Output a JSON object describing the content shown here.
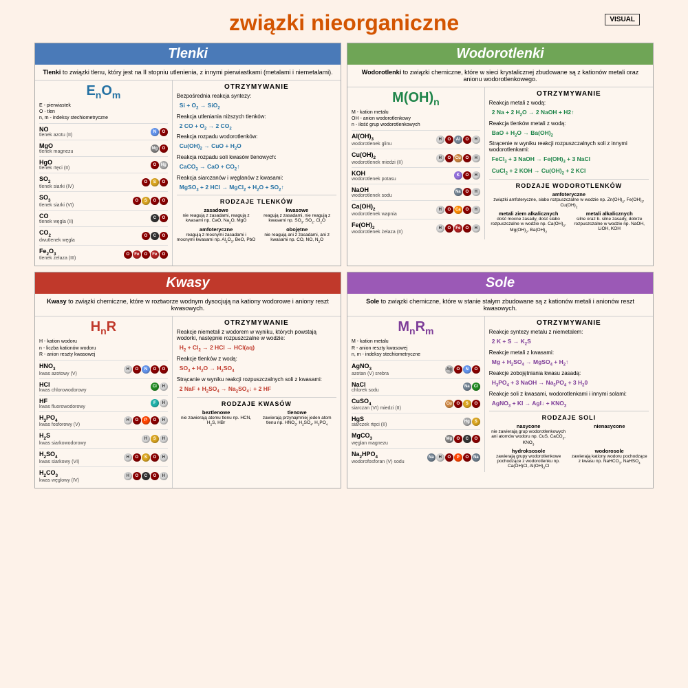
{
  "title": "związki nieorganiczne",
  "logo": "VISUAL",
  "colors": {
    "tlenki": "#4a7ab8",
    "wodorotlenki": "#6fa556",
    "kwasy": "#c0392b",
    "sole": "#9b59b6",
    "blue": "#2471a3",
    "green": "#1e8449",
    "red": "#c0392b",
    "purple": "#7d3c98"
  },
  "atoms": {
    "N": "#6495ed",
    "O": "#8b0000",
    "Mg": "#808080",
    "Hg": "#a9a9a9",
    "S": "#daa520",
    "C": "#333333",
    "Fe": "#b22222",
    "H": "#d3d3d3",
    "Al": "#778899",
    "Cu": "#cd853f",
    "K": "#9370db",
    "Na": "#708090",
    "Ca": "#ff8c00",
    "Cl": "#228b22",
    "F": "#20b2aa",
    "P": "#ff4500",
    "Ag": "#c0c0c0"
  },
  "sections": {
    "tlenki": {
      "title": "Tlenki",
      "def": "Tlenki to związki tlenu, który jest na II stopniu utlenienia, z innymi pierwiastkami (metalami i niemetalami).",
      "formula": "E<sub>n</sub>O<sub>m</sub>",
      "legend": [
        "E - pierwiastek",
        "O - tlen",
        "n, m - indeksy stechiometryczne"
      ],
      "compounds": [
        {
          "f": "NO",
          "n": "tlenek azotu (II)",
          "a": [
            "N",
            "O"
          ]
        },
        {
          "f": "MgO",
          "n": "tlenek magnezu",
          "a": [
            "Mg",
            "O"
          ]
        },
        {
          "f": "HgO",
          "n": "tlenek rtęci (II)",
          "a": [
            "O",
            "Hg"
          ]
        },
        {
          "f": "SO<sub>2</sub>",
          "n": "tlenek siarki (IV)",
          "a": [
            "O",
            "S",
            "O"
          ]
        },
        {
          "f": "SO<sub>3</sub>",
          "n": "tlenek siarki (VI)",
          "a": [
            "O",
            "S",
            "O",
            "O"
          ]
        },
        {
          "f": "CO",
          "n": "tlenek węgla (II)",
          "a": [
            "C",
            "O"
          ]
        },
        {
          "f": "CO<sub>2</sub>",
          "n": "dwutlenek węgla",
          "a": [
            "O",
            "C",
            "O"
          ]
        },
        {
          "f": "Fe<sub>2</sub>O<sub>3</sub>",
          "n": "tlenek żelaza (III)",
          "a": [
            "O",
            "Fe",
            "O",
            "Fe",
            "O"
          ]
        }
      ],
      "obtain_title": "OTRZYMYWANIE",
      "reactions": [
        {
          "t": "Bezpośrednia reakcja syntezy:",
          "e": "Si + O<sub>2</sub> → SiO<sub>2</sub>"
        },
        {
          "t": "Reakcja utleniania niższych tlenków:",
          "e": "2 CO + O<sub>2</sub> → 2 CO<sub>2</sub>"
        },
        {
          "t": "Reakcja rozpadu wodorotlenków:",
          "e": "Cu(OH)<sub>2</sub> → CuO + H<sub>2</sub>O"
        },
        {
          "t": "Reakcja rozpadu soli kwasów tlenowych:",
          "e": "CaCO<sub>3</sub> → CaO + CO<sub>2</sub>↑"
        },
        {
          "t": "Reakcja siarczanów i węglanów z kwasami:",
          "e": "MgSO<sub>3</sub> + 2 HCl → MgCl<sub>2</sub> + H<sub>2</sub>O + SO<sub>2</sub>↑"
        }
      ],
      "types_title": "RODZAJE TLENKÓW",
      "types": [
        {
          "n": "zasadowe",
          "d": "nie reagują z zasadami, reagują z kwasami np. CaO, Na<sub>2</sub>O, MgO"
        },
        {
          "n": "kwasowe",
          "d": "reagują z zasadami, nie reagują z kwasami np. SO<sub>3</sub>, SO<sub>2</sub>, Cl<sub>2</sub>O"
        },
        {
          "n": "amfoteryczne",
          "d": "reagują z mocnymi zasadami i mocnymi kwasami np. Al<sub>2</sub>O<sub>3</sub>, BeO, PbO"
        },
        {
          "n": "obojętne",
          "d": "nie reagują ani z zasadami, ani z kwasami np. CO, NO, N<sub>2</sub>O"
        }
      ]
    },
    "wodorotlenki": {
      "title": "Wodorotlenki",
      "def": "Wodorotlenki to związki chemiczne, które w sieci krystalicznej zbudowane są z kationów metali oraz anionu wodorotlenkowego.",
      "formula": "M(OH)<sub>n</sub>",
      "legend": [
        "M - kation metalu",
        "OH - anion wodorotlenkowy",
        "n - ilość grup wodorotlenkowych"
      ],
      "compounds": [
        {
          "f": "Al(OH)<sub>3</sub>",
          "n": "wodorotlenek glinu",
          "a": [
            "H",
            "O",
            "Al",
            "O",
            "H"
          ]
        },
        {
          "f": "Cu(OH)<sub>2</sub>",
          "n": "wodorotlenek miedzi (II)",
          "a": [
            "H",
            "O",
            "Cu",
            "O",
            "H"
          ]
        },
        {
          "f": "KOH",
          "n": "wodorotlenek potasu",
          "a": [
            "K",
            "O",
            "H"
          ]
        },
        {
          "f": "NaOH",
          "n": "wodorotlenek sodu",
          "a": [
            "Na",
            "O",
            "H"
          ]
        },
        {
          "f": "Ca(OH)<sub>2</sub>",
          "n": "wodorotlenek wapnia",
          "a": [
            "H",
            "O",
            "Ca",
            "O",
            "H"
          ]
        },
        {
          "f": "Fe(OH)<sub>2</sub>",
          "n": "wodorotlenek żelaza (II)",
          "a": [
            "H",
            "O",
            "Fe",
            "O",
            "H"
          ]
        }
      ],
      "obtain_title": "OTRZYMYWANIE",
      "reactions": [
        {
          "t": "Reakcja metali z wodą:",
          "e": "2 Na + 2 H<sub>2</sub>O → 2 NaOH + H2↑"
        },
        {
          "t": "Reakcja tlenków metali z wodą:",
          "e": "BaO + H<sub>2</sub>O → Ba(OH)<sub>2</sub>"
        },
        {
          "t": "Strącenie w wyniku reakcji rozpuszczalnych soli z innymi wodorotlenkami:",
          "e": "FeCl<sub>3</sub> + 3 NaOH → Fe(OH)<sub>3</sub> + 3 NaCl"
        },
        {
          "t": "",
          "e": "CuCl<sub>2</sub> + 2 KOH → Cu(OH)<sub>2</sub> + 2 KCl"
        }
      ],
      "types_title": "RODZAJE WODOROTLENKÓW",
      "types": [
        {
          "n": "amfoteryczne",
          "d": "związki amfoteryczne, słabo rozpuszczalne w wodzie np. Zn(OH)<sub>2</sub>, Fe(OH)<sub>3</sub>, Cu(OH)<sub>2</sub>",
          "span": 2
        },
        {
          "n": "metali ziem alkalicznych",
          "d": "dość mocne zasady, dość słabo rozpuszczalne w wodzie np. Ca(OH)<sub>2</sub>, Mg(OH)<sub>2</sub>, Ba(OH)<sub>2</sub>"
        },
        {
          "n": "metali alkalicznych",
          "d": "silne oraz b. silne zasady, dobrze rozpuszczalne w wodzie np. NaOH, LiOH, KOH"
        }
      ]
    },
    "kwasy": {
      "title": "Kwasy",
      "def": "Kwasy to związki chemiczne, które w roztworze wodnym dysocjują na kationy wodorowe i aniony reszt kwasowych.",
      "formula": "H<sub>n</sub>R",
      "legend": [
        "H - kation wodoru",
        "n - liczba kationów wodoru",
        "R - anion reszty kwasowej"
      ],
      "compounds": [
        {
          "f": "HNO<sub>3</sub>",
          "n": "kwas azotowy (V)",
          "a": [
            "H",
            "O",
            "N",
            "O",
            "O"
          ]
        },
        {
          "f": "HCl",
          "n": "kwas chlorowodorowy",
          "a": [
            "Cl",
            "H"
          ]
        },
        {
          "f": "HF",
          "n": "kwas fluorowodorowy",
          "a": [
            "F",
            "H"
          ]
        },
        {
          "f": "H<sub>3</sub>PO<sub>4</sub>",
          "n": "kwas fosforowy (V)",
          "a": [
            "H",
            "O",
            "P",
            "O",
            "H"
          ]
        },
        {
          "f": "H<sub>2</sub>S",
          "n": "kwas siarkowodorowy",
          "a": [
            "H",
            "S",
            "H"
          ]
        },
        {
          "f": "H<sub>2</sub>SO<sub>4</sub>",
          "n": "kwas siarkowy (VI)",
          "a": [
            "H",
            "O",
            "S",
            "O",
            "H"
          ]
        },
        {
          "f": "H<sub>2</sub>CO<sub>3</sub>",
          "n": "kwas węglowy (IV)",
          "a": [
            "H",
            "O",
            "C",
            "O",
            "H"
          ]
        }
      ],
      "obtain_title": "OTRZYMYWANIE",
      "reactions": [
        {
          "t": "Reakcje niemetali z wodorem w wyniku, których powstają wodorki, następnie rozpuszczalne w wodzie:",
          "e": "H<sub>2</sub> + Cl<sub>2</sub> → 2 HCl → HCl(aq)"
        },
        {
          "t": "Reakcje tlenków z wodą:",
          "e": "SO<sub>3</sub> + H<sub>2</sub>O → H<sub>2</sub>SO<sub>4</sub>"
        },
        {
          "t": "Strącanie w wyniku reakcji rozpuszczalnych soli z kwasami:",
          "e": "2 NaF + H<sub>2</sub>SO<sub>4</sub> → Na<sub>2</sub>SO<sub>4</sub>↓ + 2 HF"
        }
      ],
      "types_title": "RODZAJE KWASÓW",
      "types": [
        {
          "n": "beztlenowe",
          "d": "nie zawierają atomu tlenu np. HCN, H<sub>2</sub>S, HBr"
        },
        {
          "n": "tlenowe",
          "d": "zawierają przynajmniej jeden atom tlenu np. HNO<sub>3</sub>, H<sub>2</sub>SO<sub>4</sub>, H<sub>3</sub>PO<sub>4</sub>"
        }
      ]
    },
    "sole": {
      "title": "Sole",
      "def": "Sole to związki chemiczne, które w stanie stałym zbudowane są z kationów metali i anionów reszt kwasowych.",
      "formula": "M<sub>n</sub>R<sub>m</sub>",
      "legend": [
        "M - kation metalu",
        "R - anion reszty kwasowej",
        "n, m - indeksy stechiometryczne"
      ],
      "compounds": [
        {
          "f": "AgNO<sub>3</sub>",
          "n": "azotan (V) srebra",
          "a": [
            "Ag",
            "O",
            "N",
            "O"
          ]
        },
        {
          "f": "NaCl",
          "n": "chlorek sodu",
          "a": [
            "Na",
            "Cl"
          ]
        },
        {
          "f": "CuSO<sub>4</sub>",
          "n": "siarczan (VI) miedzi (II)",
          "a": [
            "Cu",
            "O",
            "S",
            "O"
          ]
        },
        {
          "f": "HgS",
          "n": "siarczek rtęci (II)",
          "a": [
            "Hg",
            "S"
          ]
        },
        {
          "f": "MgCO<sub>3</sub>",
          "n": "węglan magnezu",
          "a": [
            "Mg",
            "O",
            "C",
            "O"
          ]
        },
        {
          "f": "Na<sub>2</sub>HPO<sub>4</sub>",
          "n": "wodorofosforan (V) sodu",
          "a": [
            "Na",
            "H",
            "O",
            "P",
            "O",
            "Na"
          ]
        }
      ],
      "obtain_title": "OTRZYMYWANIE",
      "reactions": [
        {
          "t": "Reakcje syntezy metalu z niemetalem:",
          "e": "2 K + S → K<sub>2</sub>S"
        },
        {
          "t": "Reakcje metali z kwasami:",
          "e": "Mg + H<sub>2</sub>SO<sub>4</sub> → MgSO<sub>4</sub> + H<sub>2</sub>↑"
        },
        {
          "t": "Reakcje zobojętniania kwasu zasadą:",
          "e": "H<sub>3</sub>PO<sub>4</sub> + 3 NaOH → Na<sub>3</sub>PO<sub>4</sub> + 3 H<sub>2</sub>0"
        },
        {
          "t": "Reakcje soli z kwasami, wodorotlenkami i innymi solami:",
          "e": "AgNO<sub>3</sub> + KI → AgI↓ + KNO<sub>3</sub>"
        }
      ],
      "types_title": "RODZAJE SOLI",
      "types": [
        {
          "n": "nasycone",
          "d": "nie zawierają grup wodorotlenkowych ani atomów wodoru np. CuS, CaCO<sub>3</sub>, KNO<sub>3</sub>"
        },
        {
          "n": "nienasycone",
          "d": ""
        },
        {
          "n": "hydroksosole",
          "d": "zawierają grupy wodorotlenkowe pochodzące z wodorotlenku np. Ca(OH)Cl, Al(OH)<sub>2</sub>Cl"
        },
        {
          "n": "wodorosole",
          "d": "zawierają kationy wodoru pochodzące z kwasu np. NaHCO<sub>3</sub>, NaHSO<sub>4</sub>"
        }
      ]
    }
  }
}
